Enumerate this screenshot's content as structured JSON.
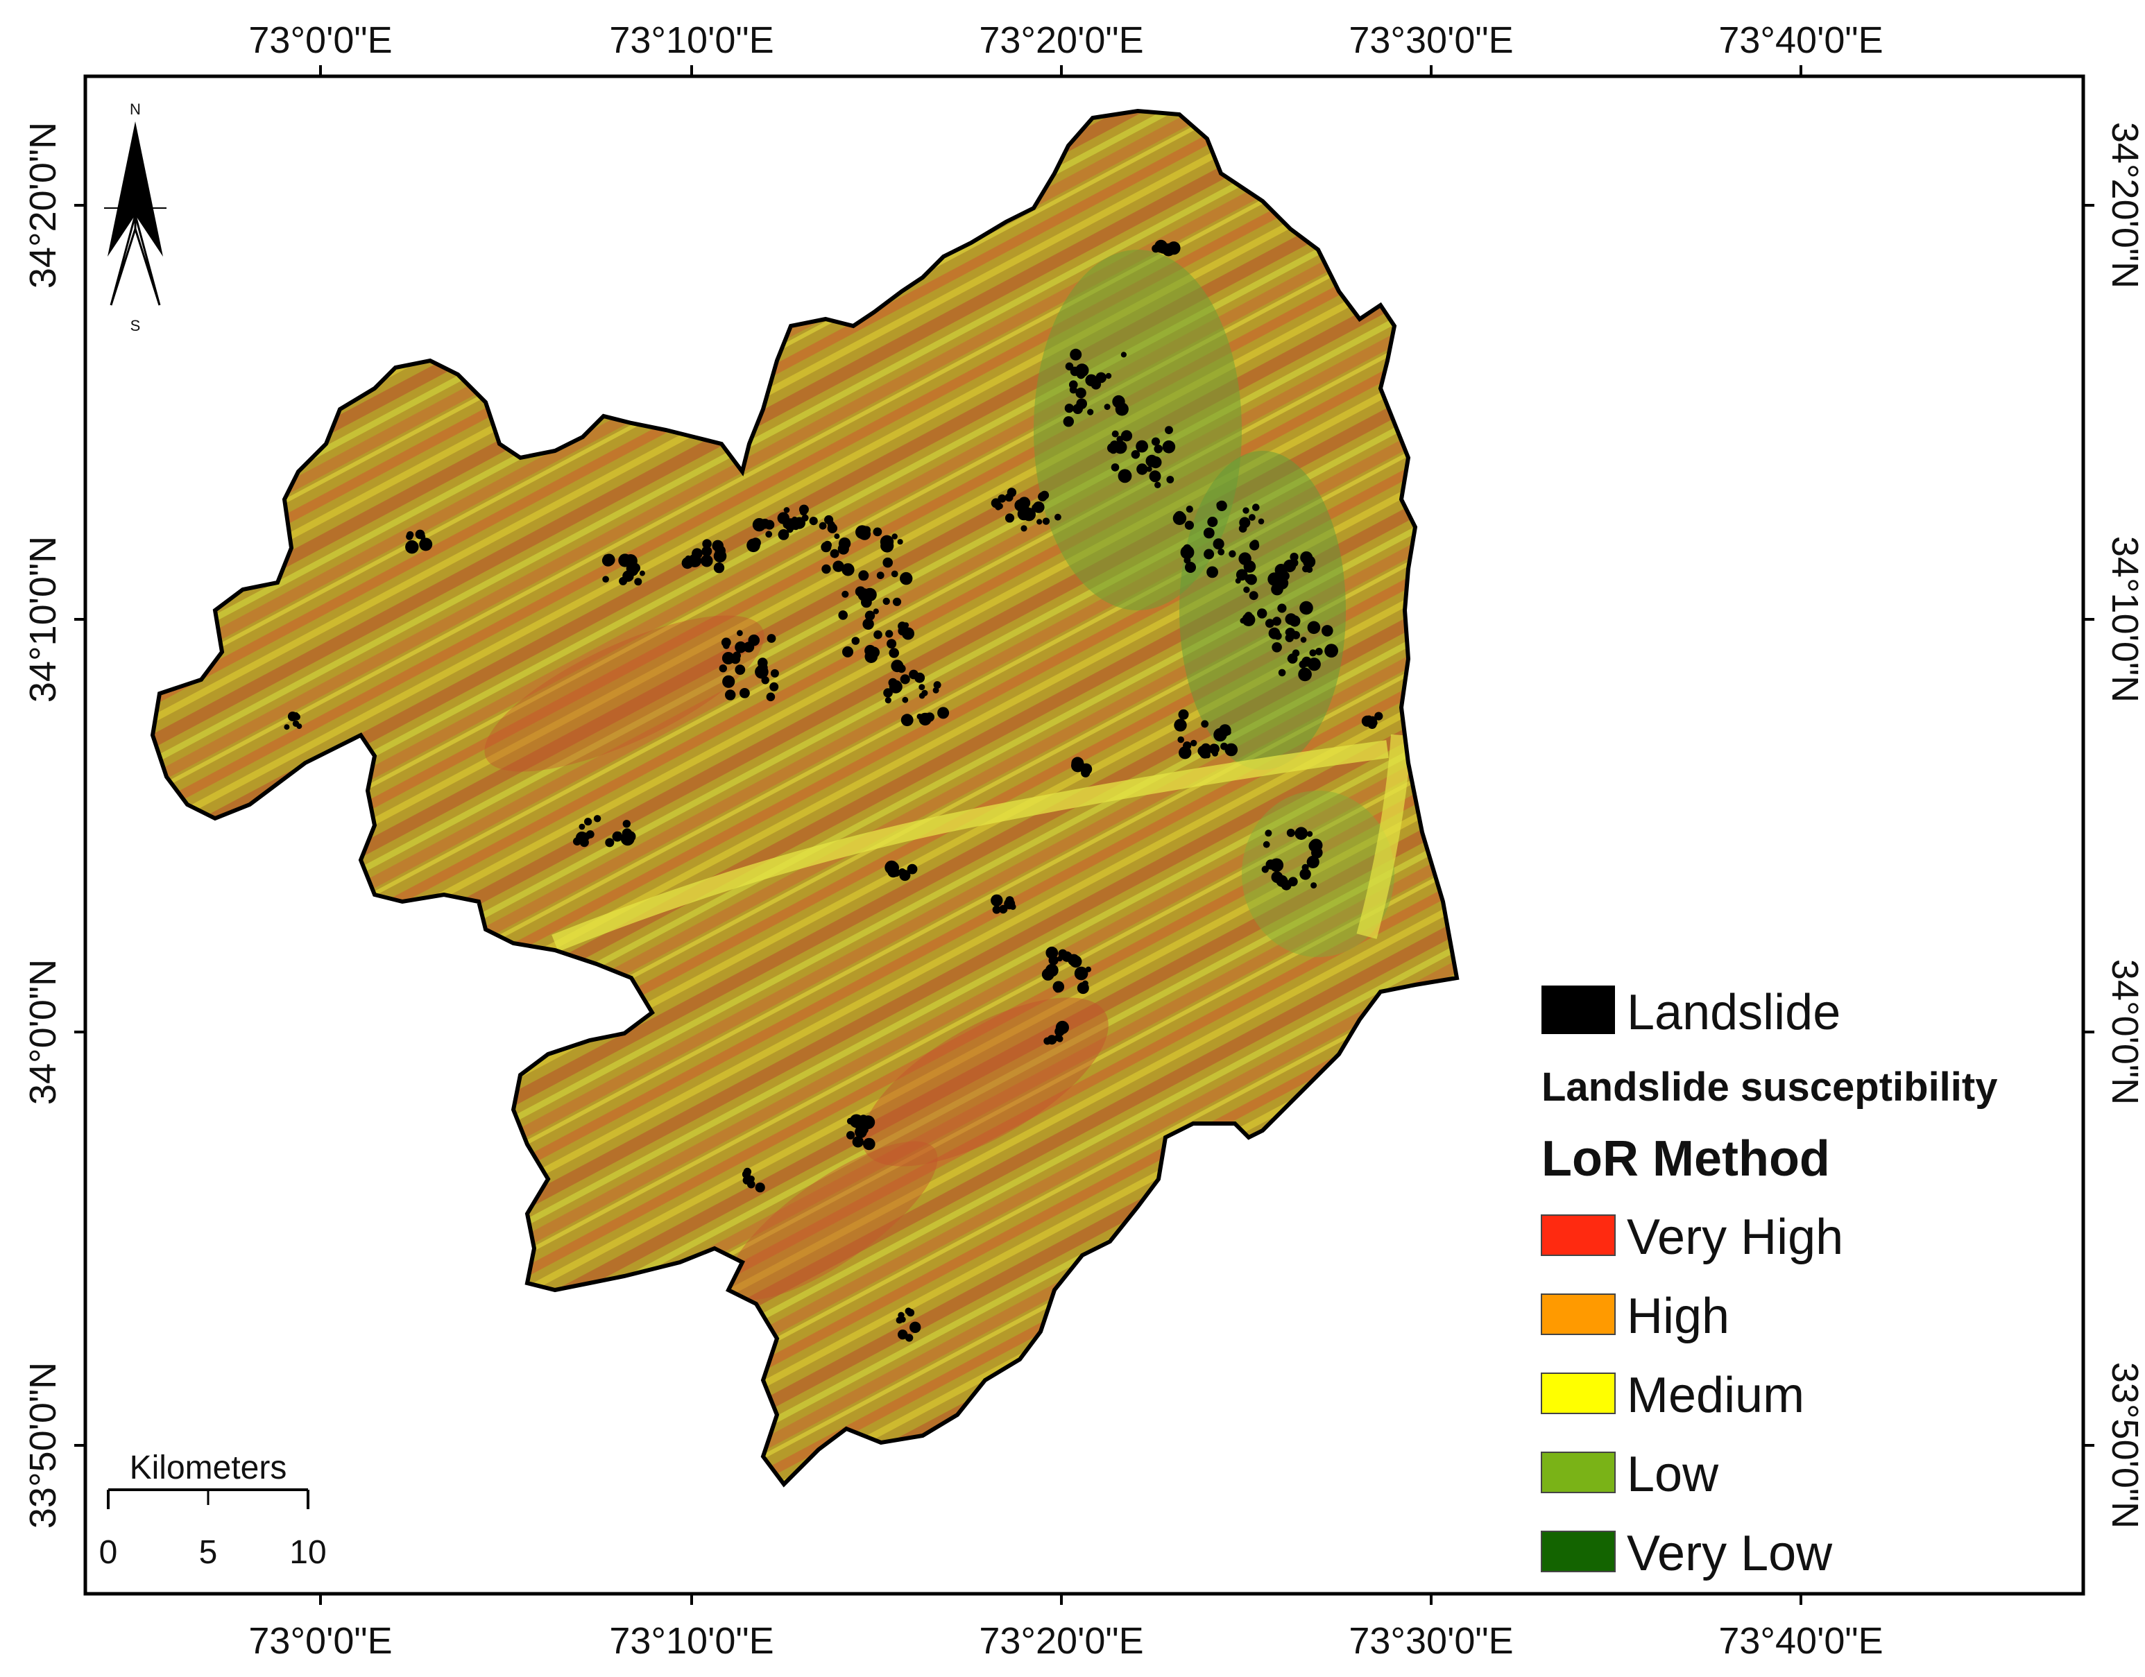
{
  "map": {
    "top_ticks": [
      "73°0'0\"E",
      "73°10'0\"E",
      "73°20'0\"E",
      "73°30'0\"E",
      "73°40'0\"E"
    ],
    "bottom_ticks": [
      "73°0'0\"E",
      "73°10'0\"E",
      "73°20'0\"E",
      "73°30'0\"E",
      "73°40'0\"E"
    ],
    "left_ticks": [
      "34°20'0\"N",
      "34°10'0\"N",
      "34°0'0\"N",
      "33°50'0\"N"
    ],
    "right_ticks": [
      "34°20'0\"N",
      "34°10'0\"N",
      "34°0'0\"N",
      "33°50'0\"N"
    ]
  },
  "north_arrow": {
    "n": "N",
    "s": "S"
  },
  "scale_bar": {
    "unit": "Kilometers",
    "labels": [
      "0",
      "5",
      "10"
    ]
  },
  "legend": {
    "landslide_label": "Landslide",
    "landslide_color": "#000000",
    "subtitle": "Landslide susceptibility",
    "method": "LoR Method",
    "classes": [
      {
        "label": "Very High",
        "color": "#ff2a10"
      },
      {
        "label": "High",
        "color": "#ff9a00"
      },
      {
        "label": "Medium",
        "color": "#ffff00"
      },
      {
        "label": "Low",
        "color": "#7ab317"
      },
      {
        "label": "Very Low",
        "color": "#136400"
      }
    ]
  }
}
